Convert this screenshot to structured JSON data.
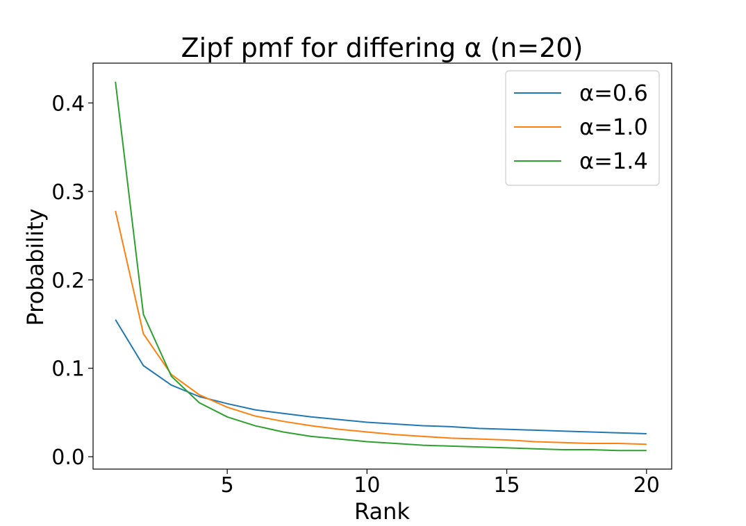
{
  "chart_data": {
    "type": "line",
    "title": "Zipf pmf for differing α (n=20)",
    "xlabel": "Rank",
    "ylabel": "Probability",
    "x": [
      1,
      2,
      3,
      4,
      5,
      6,
      7,
      8,
      9,
      10,
      11,
      12,
      13,
      14,
      15,
      16,
      17,
      18,
      19,
      20
    ],
    "xlim": [
      0.2,
      20.9
    ],
    "ylim": [
      -0.014,
      0.445
    ],
    "xticks": [
      5,
      10,
      15,
      20
    ],
    "xtick_labels": [
      "5",
      "10",
      "15",
      "20"
    ],
    "yticks": [
      0.0,
      0.1,
      0.2,
      0.3,
      0.4
    ],
    "ytick_labels": [
      "0.0",
      "0.1",
      "0.2",
      "0.3",
      "0.4"
    ],
    "grid": false,
    "legend_position": "top-right",
    "series": [
      {
        "name": "α=0.6",
        "color": "#1f77b4",
        "values": [
          0.155,
          0.103,
          0.081,
          0.068,
          0.06,
          0.053,
          0.049,
          0.045,
          0.042,
          0.039,
          0.037,
          0.035,
          0.034,
          0.032,
          0.031,
          0.03,
          0.029,
          0.028,
          0.027,
          0.026
        ]
      },
      {
        "name": "α=1.0",
        "color": "#ff7f0e",
        "values": [
          0.278,
          0.139,
          0.093,
          0.07,
          0.056,
          0.046,
          0.04,
          0.035,
          0.031,
          0.028,
          0.025,
          0.023,
          0.021,
          0.02,
          0.019,
          0.017,
          0.016,
          0.015,
          0.015,
          0.014
        ]
      },
      {
        "name": "α=1.4",
        "color": "#2ca02c",
        "values": [
          0.424,
          0.161,
          0.091,
          0.061,
          0.045,
          0.035,
          0.028,
          0.023,
          0.02,
          0.017,
          0.015,
          0.013,
          0.012,
          0.011,
          0.01,
          0.009,
          0.008,
          0.008,
          0.007,
          0.007
        ]
      }
    ]
  }
}
